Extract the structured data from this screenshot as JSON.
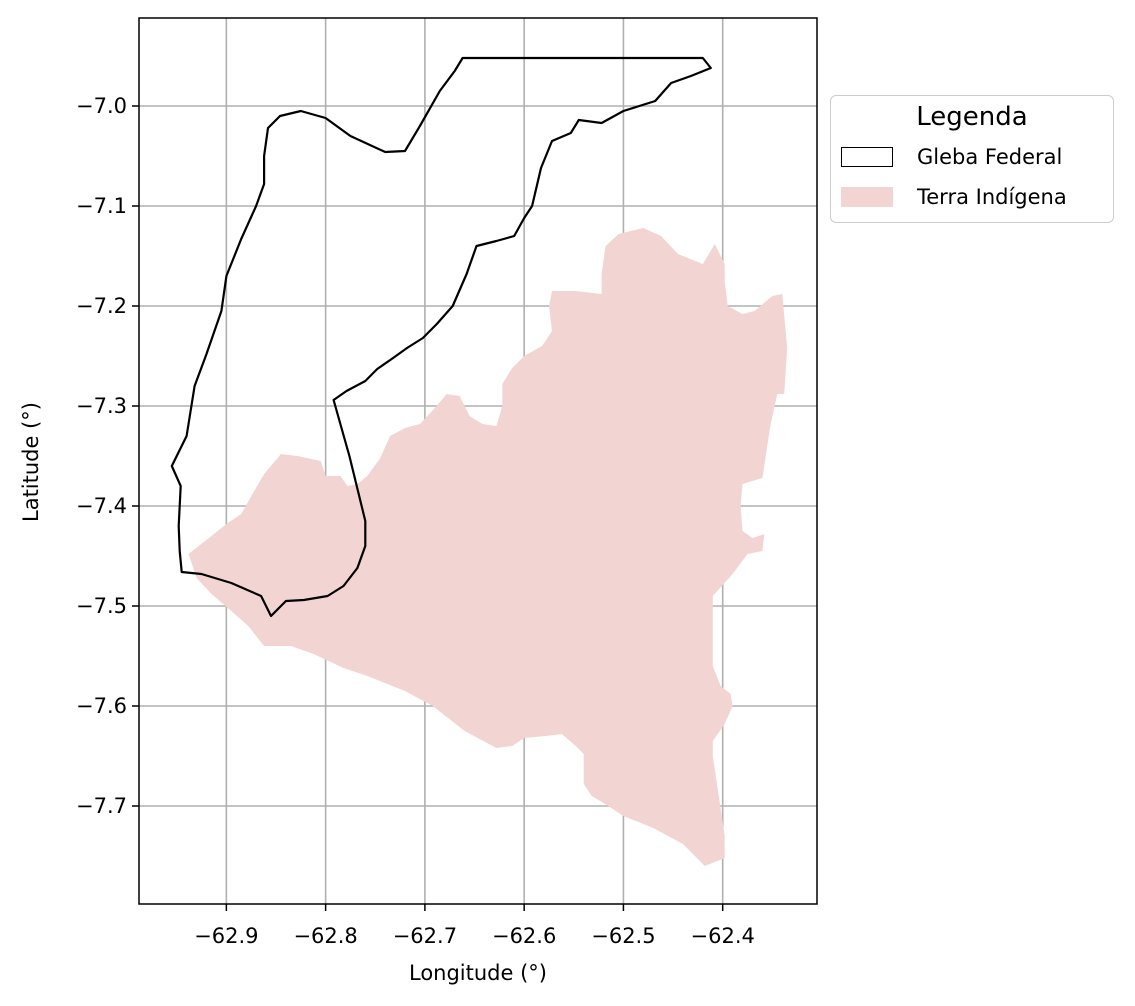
{
  "chart_data": {
    "type": "map",
    "xlabel": "Longitude (°)",
    "ylabel": "Latitude (°)",
    "xlim": [
      -62.988,
      -62.305
    ],
    "ylim": [
      -7.798,
      -6.912
    ],
    "xticks": [
      -62.9,
      -62.8,
      -62.7,
      -62.6,
      -62.5,
      -62.4
    ],
    "xtick_labels": [
      "−62.9",
      "−62.8",
      "−62.7",
      "−62.6",
      "−62.5",
      "−62.4"
    ],
    "yticks": [
      -7.0,
      -7.1,
      -7.2,
      -7.3,
      -7.4,
      -7.5,
      -7.6,
      -7.7
    ],
    "ytick_labels": [
      "−7.0",
      "−7.1",
      "−7.2",
      "−7.3",
      "−7.4",
      "−7.5",
      "−7.6",
      "−7.7"
    ],
    "grid": true,
    "legend": {
      "title": "Legenda",
      "placement": "outside-upper-right",
      "entries": [
        {
          "label": "Gleba Federal",
          "type": "outline"
        },
        {
          "label": "Terra Indígena",
          "type": "fill"
        }
      ]
    },
    "layers": [
      {
        "name": "Gleba Federal",
        "type": "outline",
        "edge_color": "#000000",
        "fill_color": "none",
        "coordinates": [
          [
            -62.662,
            -6.952
          ],
          [
            -62.42,
            -6.952
          ],
          [
            -62.412,
            -6.962
          ],
          [
            -62.432,
            -6.97
          ],
          [
            -62.452,
            -6.977
          ],
          [
            -62.468,
            -6.995
          ],
          [
            -62.5,
            -7.005
          ],
          [
            -62.522,
            -7.017
          ],
          [
            -62.545,
            -7.014
          ],
          [
            -62.553,
            -7.027
          ],
          [
            -62.572,
            -7.035
          ],
          [
            -62.583,
            -7.062
          ],
          [
            -62.592,
            -7.1
          ],
          [
            -62.6,
            -7.112
          ],
          [
            -62.61,
            -7.13
          ],
          [
            -62.628,
            -7.135
          ],
          [
            -62.648,
            -7.14
          ],
          [
            -62.658,
            -7.168
          ],
          [
            -62.672,
            -7.2
          ],
          [
            -62.688,
            -7.218
          ],
          [
            -62.702,
            -7.232
          ],
          [
            -62.718,
            -7.242
          ],
          [
            -62.732,
            -7.252
          ],
          [
            -62.748,
            -7.263
          ],
          [
            -62.76,
            -7.275
          ],
          [
            -62.779,
            -7.285
          ],
          [
            -62.792,
            -7.294
          ],
          [
            -62.776,
            -7.35
          ],
          [
            -62.76,
            -7.415
          ],
          [
            -62.76,
            -7.44
          ],
          [
            -62.768,
            -7.462
          ],
          [
            -62.782,
            -7.48
          ],
          [
            -62.798,
            -7.49
          ],
          [
            -62.822,
            -7.494
          ],
          [
            -62.84,
            -7.495
          ],
          [
            -62.85,
            -7.505
          ],
          [
            -62.855,
            -7.51
          ],
          [
            -62.865,
            -7.49
          ],
          [
            -62.895,
            -7.477
          ],
          [
            -62.925,
            -7.468
          ],
          [
            -62.945,
            -7.466
          ],
          [
            -62.947,
            -7.445
          ],
          [
            -62.948,
            -7.42
          ],
          [
            -62.946,
            -7.38
          ],
          [
            -62.955,
            -7.36
          ],
          [
            -62.94,
            -7.33
          ],
          [
            -62.932,
            -7.28
          ],
          [
            -62.92,
            -7.248
          ],
          [
            -62.905,
            -7.205
          ],
          [
            -62.9,
            -7.17
          ],
          [
            -62.885,
            -7.133
          ],
          [
            -62.87,
            -7.1
          ],
          [
            -62.862,
            -7.078
          ],
          [
            -62.862,
            -7.05
          ],
          [
            -62.858,
            -7.022
          ],
          [
            -62.846,
            -7.01
          ],
          [
            -62.825,
            -7.005
          ],
          [
            -62.8,
            -7.012
          ],
          [
            -62.775,
            -7.03
          ],
          [
            -62.74,
            -7.046
          ],
          [
            -62.72,
            -7.045
          ],
          [
            -62.705,
            -7.02
          ],
          [
            -62.685,
            -6.985
          ],
          [
            -62.67,
            -6.965
          ],
          [
            -62.662,
            -6.952
          ]
        ]
      },
      {
        "name": "Terra Indígena",
        "type": "fill",
        "edge_color": "none",
        "fill_color": "#f2d5d3",
        "coordinates": [
          [
            -62.938,
            -7.448
          ],
          [
            -62.915,
            -7.43
          ],
          [
            -62.9,
            -7.418
          ],
          [
            -62.885,
            -7.408
          ],
          [
            -62.872,
            -7.385
          ],
          [
            -62.862,
            -7.368
          ],
          [
            -62.845,
            -7.348
          ],
          [
            -62.828,
            -7.35
          ],
          [
            -62.805,
            -7.355
          ],
          [
            -62.8,
            -7.37
          ],
          [
            -62.785,
            -7.37
          ],
          [
            -62.778,
            -7.38
          ],
          [
            -62.768,
            -7.378
          ],
          [
            -62.758,
            -7.37
          ],
          [
            -62.745,
            -7.352
          ],
          [
            -62.735,
            -7.33
          ],
          [
            -62.72,
            -7.322
          ],
          [
            -62.705,
            -7.318
          ],
          [
            -62.69,
            -7.302
          ],
          [
            -62.678,
            -7.288
          ],
          [
            -62.665,
            -7.29
          ],
          [
            -62.655,
            -7.31
          ],
          [
            -62.642,
            -7.318
          ],
          [
            -62.628,
            -7.32
          ],
          [
            -62.622,
            -7.3
          ],
          [
            -62.622,
            -7.278
          ],
          [
            -62.612,
            -7.262
          ],
          [
            -62.6,
            -7.25
          ],
          [
            -62.582,
            -7.24
          ],
          [
            -62.572,
            -7.225
          ],
          [
            -62.575,
            -7.2
          ],
          [
            -62.572,
            -7.185
          ],
          [
            -62.548,
            -7.185
          ],
          [
            -62.522,
            -7.188
          ],
          [
            -62.522,
            -7.168
          ],
          [
            -62.518,
            -7.14
          ],
          [
            -62.505,
            -7.128
          ],
          [
            -62.48,
            -7.122
          ],
          [
            -62.462,
            -7.13
          ],
          [
            -62.445,
            -7.148
          ],
          [
            -62.42,
            -7.158
          ],
          [
            -62.408,
            -7.138
          ],
          [
            -62.398,
            -7.158
          ],
          [
            -62.398,
            -7.175
          ],
          [
            -62.395,
            -7.2
          ],
          [
            -62.38,
            -7.208
          ],
          [
            -62.368,
            -7.205
          ],
          [
            -62.35,
            -7.19
          ],
          [
            -62.34,
            -7.188
          ],
          [
            -62.335,
            -7.242
          ],
          [
            -62.338,
            -7.288
          ],
          [
            -62.345,
            -7.288
          ],
          [
            -62.352,
            -7.32
          ],
          [
            -62.36,
            -7.372
          ],
          [
            -62.37,
            -7.375
          ],
          [
            -62.38,
            -7.378
          ],
          [
            -62.382,
            -7.4
          ],
          [
            -62.38,
            -7.425
          ],
          [
            -62.37,
            -7.432
          ],
          [
            -62.358,
            -7.428
          ],
          [
            -62.36,
            -7.445
          ],
          [
            -62.375,
            -7.448
          ],
          [
            -62.39,
            -7.468
          ],
          [
            -62.41,
            -7.49
          ],
          [
            -62.41,
            -7.56
          ],
          [
            -62.402,
            -7.58
          ],
          [
            -62.392,
            -7.588
          ],
          [
            -62.39,
            -7.6
          ],
          [
            -62.398,
            -7.618
          ],
          [
            -62.41,
            -7.635
          ],
          [
            -62.41,
            -7.65
          ],
          [
            -62.398,
            -7.73
          ],
          [
            -62.398,
            -7.752
          ],
          [
            -62.418,
            -7.76
          ],
          [
            -62.43,
            -7.748
          ],
          [
            -62.44,
            -7.738
          ],
          [
            -62.47,
            -7.722
          ],
          [
            -62.5,
            -7.71
          ],
          [
            -62.52,
            -7.697
          ],
          [
            -62.532,
            -7.69
          ],
          [
            -62.54,
            -7.678
          ],
          [
            -62.54,
            -7.648
          ],
          [
            -62.548,
            -7.64
          ],
          [
            -62.562,
            -7.628
          ],
          [
            -62.578,
            -7.63
          ],
          [
            -62.6,
            -7.632
          ],
          [
            -62.612,
            -7.64
          ],
          [
            -62.628,
            -7.642
          ],
          [
            -62.66,
            -7.625
          ],
          [
            -62.692,
            -7.6
          ],
          [
            -62.72,
            -7.585
          ],
          [
            -62.758,
            -7.57
          ],
          [
            -62.782,
            -7.562
          ],
          [
            -62.812,
            -7.548
          ],
          [
            -62.835,
            -7.54
          ],
          [
            -62.862,
            -7.54
          ],
          [
            -62.878,
            -7.52
          ],
          [
            -62.895,
            -7.505
          ],
          [
            -62.915,
            -7.488
          ],
          [
            -62.93,
            -7.472
          ],
          [
            -62.938,
            -7.448
          ]
        ]
      }
    ]
  }
}
